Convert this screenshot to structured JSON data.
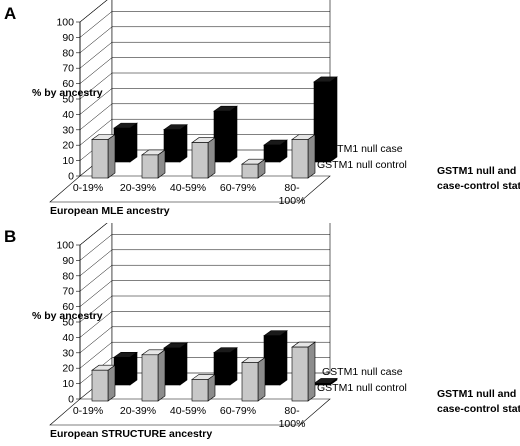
{
  "chart_data": [
    {
      "type": "bar",
      "panel_label": "A",
      "ylabel": "% by ancestry",
      "xlabel": "European MLE ancestry",
      "zlabel": [
        "GSTM1 null and",
        "case-control status"
      ],
      "categories": [
        "0-19%",
        "20-39%",
        "40-59%",
        "60-79%",
        "80-100%"
      ],
      "category_tick_lines": [
        [
          "0-19%"
        ],
        [
          "20-39%"
        ],
        [
          "40-59%"
        ],
        [
          "60-79%"
        ],
        [
          "80-",
          "100%"
        ]
      ],
      "ylim": [
        0,
        100
      ],
      "yticks": [
        0,
        10,
        20,
        30,
        40,
        50,
        60,
        70,
        80,
        90,
        100
      ],
      "grid": true,
      "series": [
        {
          "name": "GSTM1 null control",
          "color": "#c8c8c8",
          "values": [
            25,
            15,
            23,
            9,
            25
          ]
        },
        {
          "name": "GSTM1 null case",
          "color": "#000000",
          "values": [
            22,
            21,
            33,
            11,
            52
          ]
        }
      ]
    },
    {
      "type": "bar",
      "panel_label": "B",
      "ylabel": "% by ancestry",
      "xlabel": "European STRUCTURE ancestry",
      "zlabel": [
        "GSTM1 null and",
        "case-control status"
      ],
      "categories": [
        "0-19%",
        "20-39%",
        "40-59%",
        "60-79%",
        "80-100%"
      ],
      "category_tick_lines": [
        [
          "0-19%"
        ],
        [
          "20-39%"
        ],
        [
          "40-59%"
        ],
        [
          "60-79%"
        ],
        [
          "80-",
          "100%"
        ]
      ],
      "ylim": [
        0,
        100
      ],
      "yticks": [
        0,
        10,
        20,
        30,
        40,
        50,
        60,
        70,
        80,
        90,
        100
      ],
      "grid": true,
      "series": [
        {
          "name": "GSTM1 null control",
          "color": "#c8c8c8",
          "values": [
            20,
            30,
            14,
            25,
            35
          ]
        },
        {
          "name": "GSTM1 null case",
          "color": "#000000",
          "values": [
            18,
            24,
            21,
            32,
            1
          ]
        }
      ]
    }
  ]
}
